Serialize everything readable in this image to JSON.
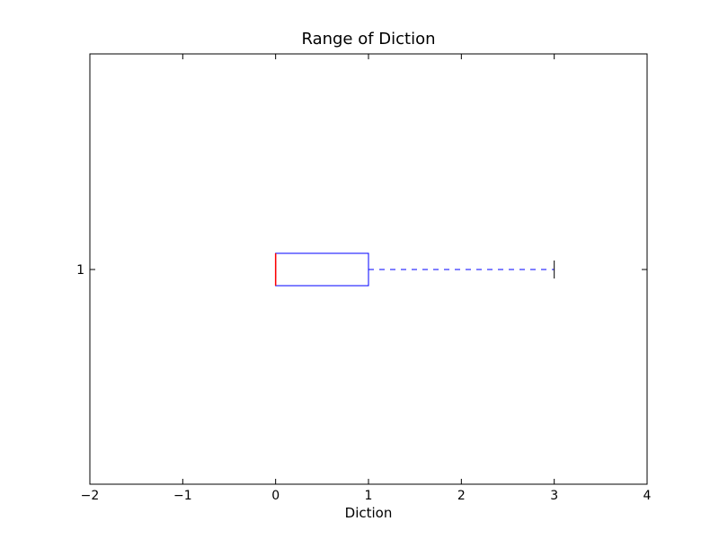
{
  "chart_data": {
    "type": "boxplot",
    "orientation": "horizontal",
    "title": "Range of Diction",
    "xlabel": "Diction",
    "ylabel": "",
    "xlim": [
      -2,
      4
    ],
    "xticks": [
      -2,
      -1,
      0,
      1,
      2,
      3,
      4
    ],
    "xtick_labels": [
      "−2",
      "−1",
      "0",
      "1",
      "2",
      "3",
      "4"
    ],
    "yticks": [
      1
    ],
    "ytick_labels": [
      "1"
    ],
    "grid": false,
    "boxes": [
      {
        "position": 1,
        "whisker_low": 0,
        "q1": 0,
        "median": 0,
        "q3": 1,
        "whisker_high": 3
      }
    ],
    "colors": {
      "box": "#0000ff",
      "whisker": "#0000ff",
      "median": "#ff0000",
      "cap": "#000000",
      "axes": "#000000"
    }
  }
}
